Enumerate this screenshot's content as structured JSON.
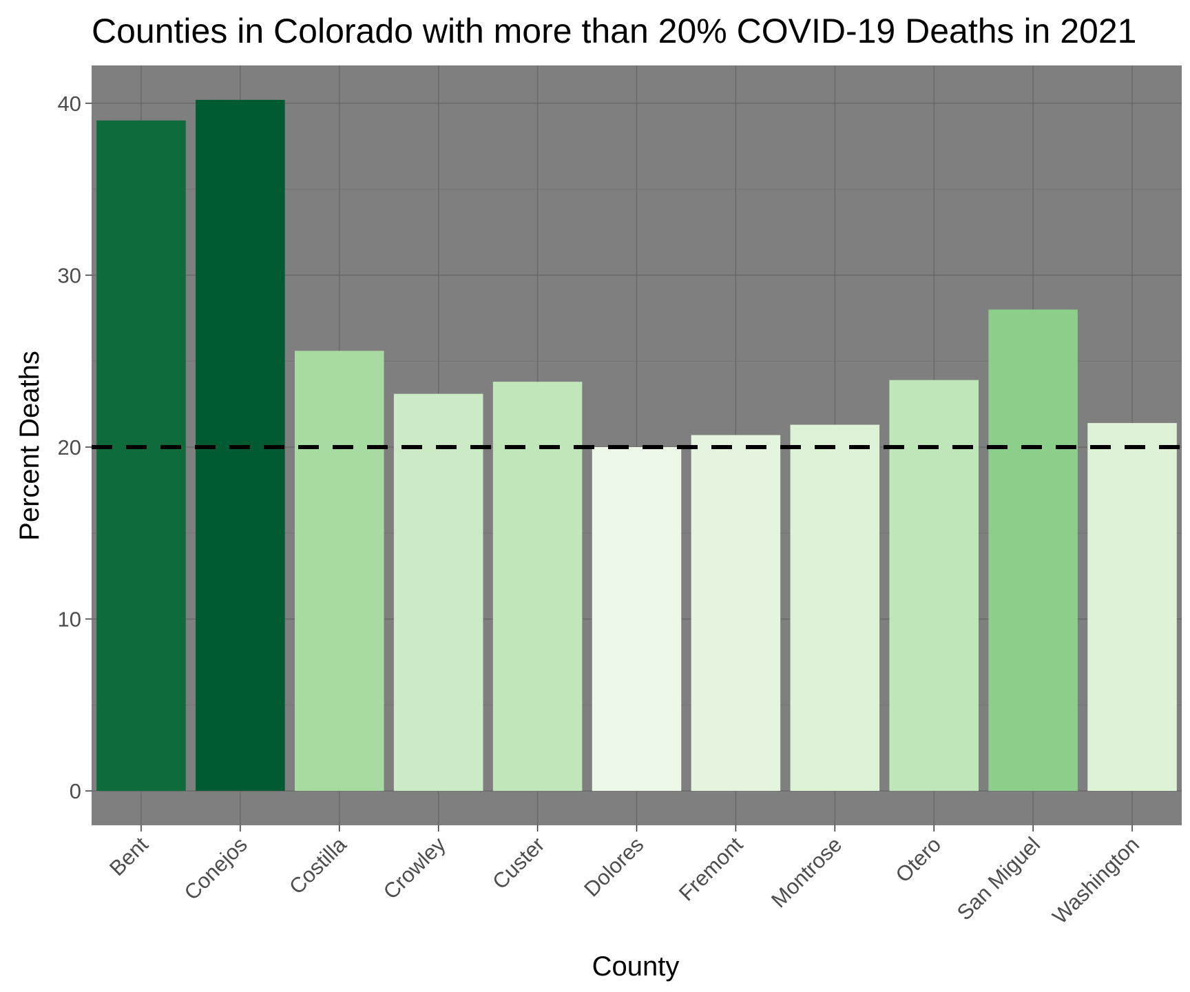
{
  "chart_data": {
    "type": "bar",
    "title": "Counties in Colorado with more than 20% COVID-19 Deaths in 2021",
    "xlabel": "County",
    "ylabel": "Percent Deaths",
    "categories": [
      "Bent",
      "Conejos",
      "Costilla",
      "Crowley",
      "Custer",
      "Dolores",
      "Fremont",
      "Montrose",
      "Otero",
      "San Miguel",
      "Washington"
    ],
    "values": [
      39.0,
      40.2,
      25.6,
      23.1,
      23.8,
      20.0,
      20.7,
      21.3,
      23.9,
      28.0,
      21.4
    ],
    "bar_colors": [
      "#0f6b3c",
      "#005a32",
      "#a8dba2",
      "#cbeac5",
      "#c0e6b9",
      "#edf8e9",
      "#e4f4df",
      "#def2d8",
      "#bfe6b8",
      "#8ccf8a",
      "#def2d8"
    ],
    "reference_line": {
      "value": 20,
      "style": "dashed",
      "color": "#000000"
    },
    "y_ticks": [
      0,
      10,
      20,
      30,
      40
    ],
    "ylim": [
      -2,
      42.2
    ],
    "grid": true,
    "legend": "none",
    "colors": {
      "panel_background": "#7f7f7f",
      "gridline_major": "#666666",
      "gridline_minor": "#737373",
      "tick_label": "#4d4d4d"
    }
  }
}
